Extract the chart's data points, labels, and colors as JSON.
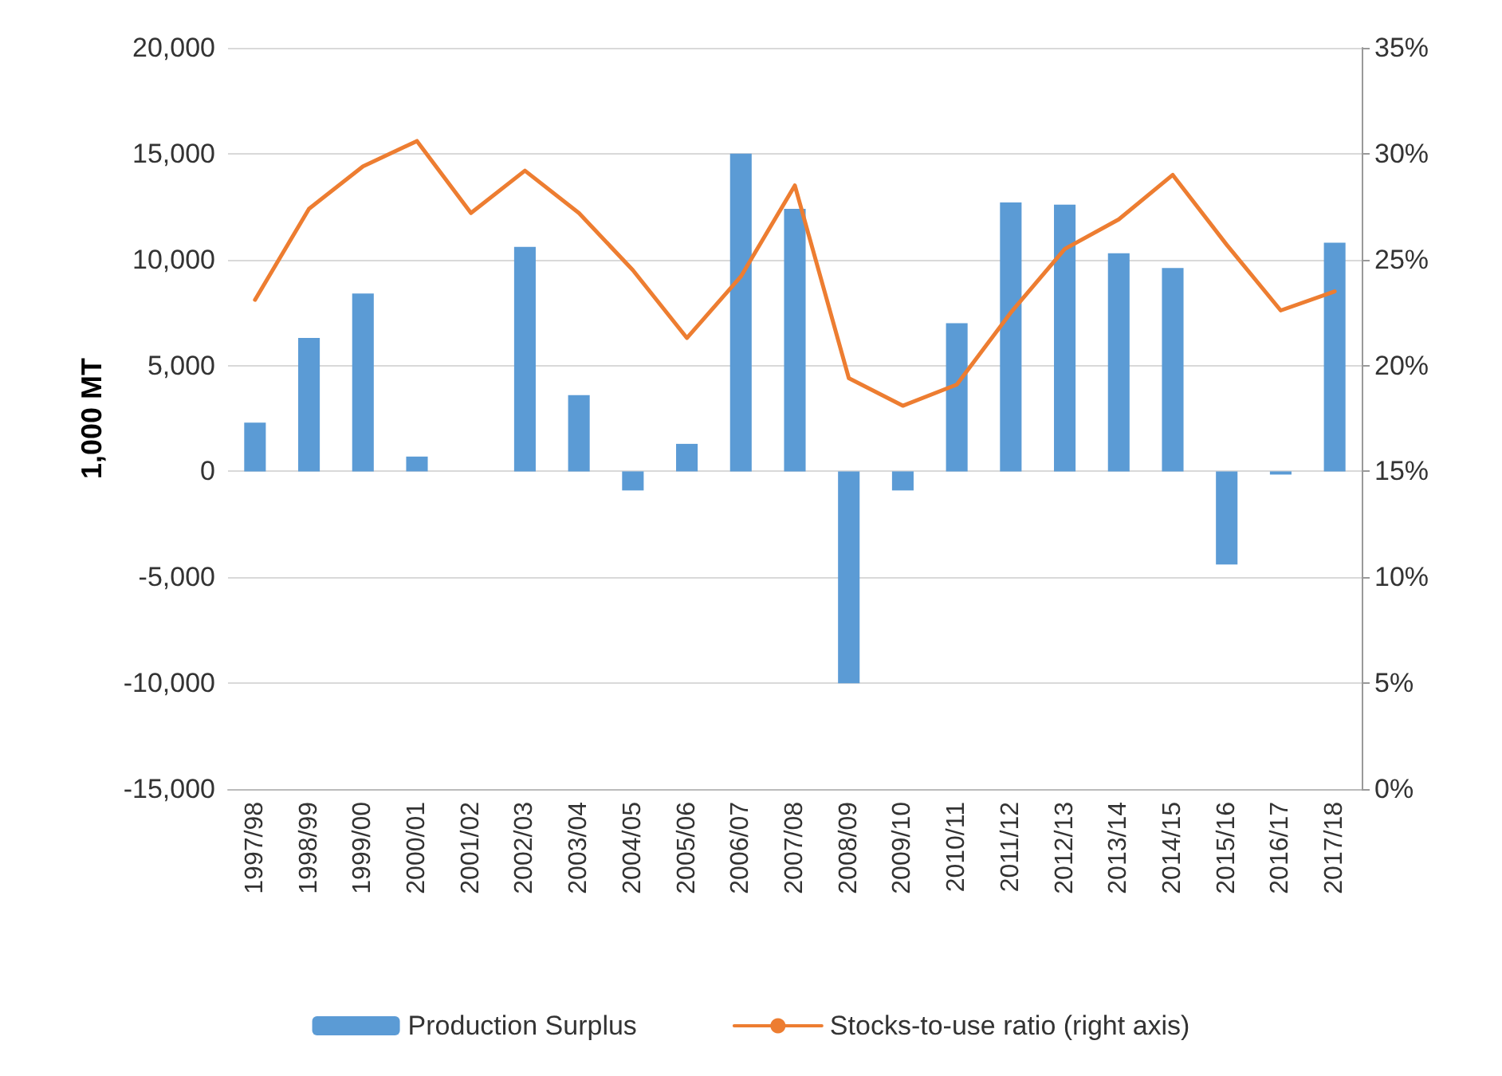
{
  "chart_data": {
    "type": "bar",
    "ylabel": "1,000 MT",
    "categories": [
      "1997/98",
      "1998/99",
      "1999/00",
      "2000/01",
      "2001/02",
      "2002/03",
      "2003/04",
      "2004/05",
      "2005/06",
      "2006/07",
      "2007/08",
      "2008/09",
      "2009/10",
      "2010/11",
      "2011/12",
      "2012/13",
      "2013/14",
      "2014/15",
      "2015/16",
      "2016/17",
      "2017/18"
    ],
    "series": [
      {
        "name": "Production Surplus",
        "color": "#5b9bd5",
        "values": [
          2300,
          6300,
          8400,
          700,
          0,
          10600,
          3600,
          -900,
          1300,
          15000,
          12400,
          -10000,
          -900,
          7000,
          12700,
          12600,
          10300,
          9600,
          -4400,
          -150,
          10800
        ]
      },
      {
        "name": "Stocks-to-use ratio (right axis)",
        "type": "line",
        "axis": "y2",
        "color": "#ed7d31",
        "values": [
          23.1,
          27.4,
          29.4,
          30.6,
          27.2,
          29.2,
          27.2,
          24.5,
          21.3,
          24.2,
          28.5,
          19.4,
          18.1,
          19.1,
          22.5,
          25.5,
          26.9,
          29.0,
          25.7,
          22.6,
          23.5
        ]
      }
    ],
    "ylim": [
      -15000,
      20000
    ],
    "yticks": [
      {
        "value": -15000,
        "label": "-15,000"
      },
      {
        "value": -10000,
        "label": "-10,000"
      },
      {
        "value": -5000,
        "label": "-5,000"
      },
      0,
      {
        "value": 5000,
        "label": "5,000"
      },
      {
        "value": 10000,
        "label": "10,000"
      },
      {
        "value": 15000,
        "label": "15,000"
      },
      {
        "value": 20000,
        "label": "20,000"
      }
    ],
    "y2lim": [
      0,
      35
    ],
    "y2ticks": [
      {
        "value": 0,
        "label": "0%"
      },
      {
        "value": 5,
        "label": "5%"
      },
      {
        "value": 10,
        "label": "10%"
      },
      {
        "value": 15,
        "label": "15%"
      },
      {
        "value": 20,
        "label": "20%"
      },
      {
        "value": 25,
        "label": "25%"
      },
      {
        "value": 30,
        "label": "30%"
      },
      {
        "value": 35,
        "label": "35%"
      }
    ],
    "grid": "y",
    "legend": "bottom",
    "marker": "none",
    "line_style": "solid"
  }
}
